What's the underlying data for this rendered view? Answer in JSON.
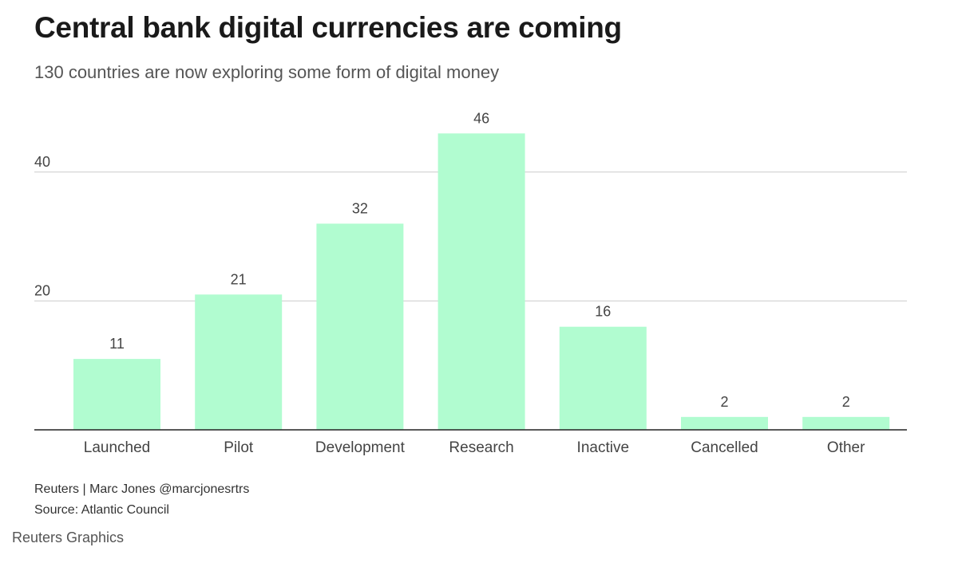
{
  "header": {
    "title": "Central bank digital currencies are coming",
    "subtitle": "130 countries are now exploring some form of digital money"
  },
  "chart_data": {
    "type": "bar",
    "title": "Central bank digital currencies are coming",
    "subtitle": "130 countries are now exploring some form of digital money",
    "categories": [
      "Launched",
      "Pilot",
      "Development",
      "Research",
      "Inactive",
      "Cancelled",
      "Other"
    ],
    "values": [
      11,
      21,
      32,
      46,
      16,
      2,
      2
    ],
    "value_labels": [
      "11",
      "21",
      "32",
      "46",
      "16",
      "2",
      "2"
    ],
    "xlabel": "",
    "ylabel": "",
    "ylim": [
      0,
      50
    ],
    "yticks": [
      20,
      40
    ],
    "ytick_labels": [
      "20",
      "40"
    ],
    "grid": true,
    "colors": {
      "bar": "#b1fcd0",
      "grid": "#cccccc",
      "axis": "#222222",
      "text": "#444444"
    }
  },
  "footer": {
    "byline": "Reuters | Marc Jones @marcjonesrtrs",
    "source": "Source: Atlantic Council",
    "brand": "Reuters Graphics"
  }
}
